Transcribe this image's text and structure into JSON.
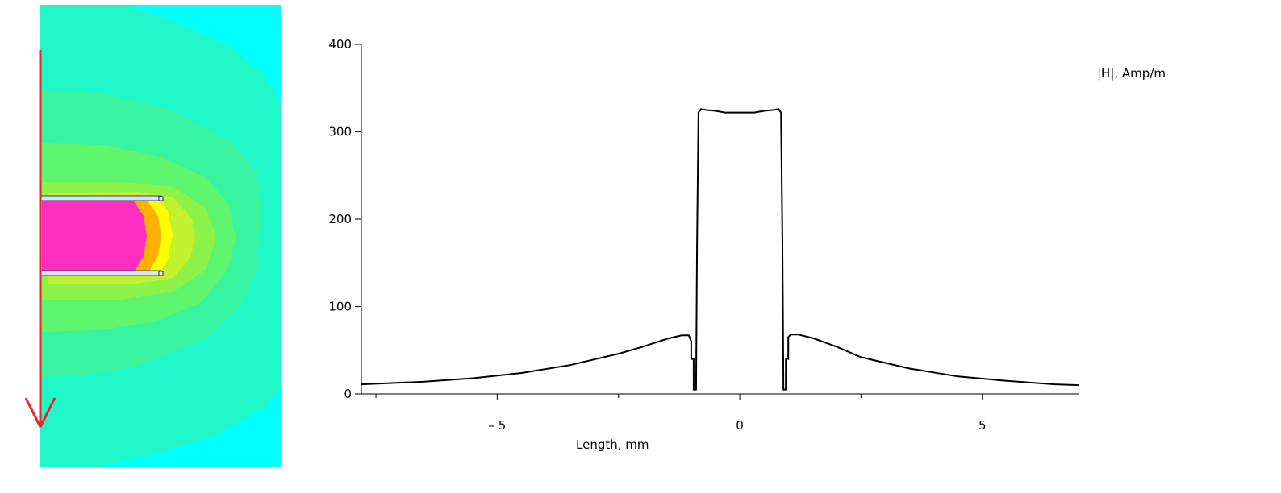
{
  "field_map": {
    "colors": {
      "background": "#00ffff",
      "outer": "#1ff7c8",
      "mid": "#38f3a0",
      "green": "#5ef56e",
      "lime": "#8cf24a",
      "yellow_green": "#c3f02f",
      "yellow": "#ffff00",
      "orange": "#ffb000",
      "interior": "#ff2dc0",
      "arrow": "#e8262b"
    },
    "arrow_icon": "arrow-down-icon"
  },
  "chart_data": {
    "type": "line",
    "series": [
      {
        "color": "#000000",
        "x": [
          -7.8,
          -6.5,
          -5.5,
          -4.5,
          -3.5,
          -2.5,
          -2.0,
          -1.5,
          -1.2,
          -1.05,
          -1.0,
          -1.0,
          -0.95,
          -0.95,
          -0.9,
          -0.88,
          -0.85,
          -0.8,
          -0.7,
          -0.5,
          -0.3,
          0.0,
          0.3,
          0.5,
          0.7,
          0.8,
          0.85,
          0.88,
          0.9,
          0.95,
          0.95,
          1.0,
          1.0,
          1.05,
          1.2,
          1.5,
          2.0,
          2.5,
          3.5,
          4.5,
          5.5,
          6.5,
          7.0
        ],
        "y": [
          11,
          14,
          18,
          24,
          33,
          46,
          54,
          63,
          67,
          67,
          60,
          40,
          40,
          5,
          5,
          170,
          322,
          326,
          325,
          324,
          322,
          322,
          322,
          324,
          325,
          326,
          322,
          170,
          5,
          5,
          40,
          40,
          65,
          68,
          68,
          64,
          54,
          42,
          29,
          20,
          15,
          11,
          10
        ]
      }
    ],
    "xlabel": "Length, mm",
    "ylabel": "|H|, Amp/m",
    "xlim": [
      -7.8,
      7.0
    ],
    "ylim": [
      0,
      400
    ],
    "xticks": [
      -5,
      0,
      5
    ],
    "yticks": [
      0,
      100,
      200,
      300,
      400
    ],
    "xtick_labels": [
      "– 5",
      "0",
      "5"
    ],
    "ytick_labels": [
      "0",
      "100",
      "200",
      "300",
      "400"
    ],
    "grid": false
  }
}
